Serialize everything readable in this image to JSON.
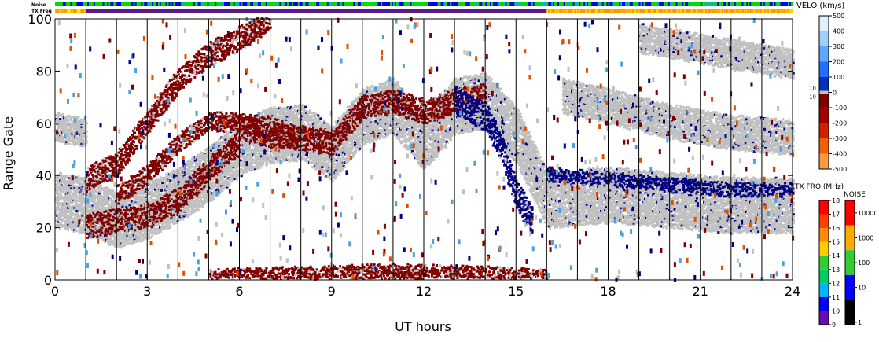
{
  "chart_data": {
    "type": "heatmap",
    "xlabel": "UT hours",
    "ylabel": "Range Gate",
    "x_ticks": [
      "0",
      "3",
      "6",
      "9",
      "12",
      "15",
      "18",
      "21",
      "24"
    ],
    "xlim": [
      0,
      24
    ],
    "y_ticks": [
      "0",
      "20",
      "40",
      "60",
      "80",
      "100"
    ],
    "ylim": [
      0,
      100
    ],
    "vertical_gridlines_hours": [
      1,
      2,
      3,
      4,
      5,
      6,
      7,
      8,
      9,
      10,
      11,
      12,
      13,
      14,
      15,
      16,
      17,
      18,
      19,
      20,
      21,
      22,
      23
    ],
    "top_strips": {
      "noise_label": "Noise",
      "txfreq_label": "TX Freq",
      "noise_pattern": "blue/green mix over full day",
      "txfreq_segments": [
        {
          "start": 0.0,
          "end": 1.0,
          "color": "#ffee00"
        },
        {
          "start": 1.0,
          "end": 16.0,
          "color": "#5a1a8c"
        },
        {
          "start": 16.0,
          "end": 24.0,
          "color": "#ffd000"
        }
      ]
    },
    "velocity_scale": {
      "title": "VELO (km/s)",
      "ticks": [
        "500",
        "400",
        "300",
        "200",
        "100",
        "0",
        "-100",
        "-200",
        "-300",
        "-400",
        "-500"
      ],
      "small_ticks": [
        "10",
        "-10"
      ],
      "range": [
        -500,
        500
      ]
    },
    "txfreq_scale": {
      "title": "TX FRQ (MHz)",
      "ticks": [
        "18",
        "17",
        "16",
        "15",
        "14",
        "13",
        "12",
        "11",
        "10",
        "9"
      ],
      "colors": [
        "#ff0000",
        "#ff4000",
        "#ff8c00",
        "#ffcc00",
        "#33cc33",
        "#00cc66",
        "#00b4ff",
        "#0000ff",
        "#6a0dad",
        "#000000"
      ]
    },
    "noise_scale": {
      "title": "NOISE",
      "ticks": [
        "10000",
        "1000",
        "100",
        "10",
        "1"
      ],
      "colors": [
        "#ff0000",
        "#ffaa00",
        "#33cc33",
        "#0000ff",
        "#000000"
      ]
    },
    "colors": {
      "ground_scatter": "#c0c0c0",
      "toward": "#000080",
      "away": "#800000",
      "away_light": "#e05000",
      "toward_light": "#4aa0e0"
    },
    "features": [
      {
        "name": "ground-scatter",
        "color": "#c0c0c0",
        "path": [
          [
            0,
            30
          ],
          [
            1,
            28
          ],
          [
            2,
            22
          ],
          [
            3,
            26
          ],
          [
            4,
            32
          ],
          [
            5,
            40
          ],
          [
            6,
            50
          ],
          [
            7,
            55
          ],
          [
            8,
            56
          ],
          [
            9,
            48
          ],
          [
            10,
            62
          ],
          [
            11,
            66
          ],
          [
            12,
            52
          ],
          [
            13,
            66
          ],
          [
            14,
            68
          ],
          [
            15,
            55
          ],
          [
            16,
            30
          ],
          [
            18,
            32
          ],
          [
            20,
            30
          ],
          [
            22,
            28
          ],
          [
            24,
            28
          ]
        ],
        "width": 10
      },
      {
        "name": "ground-scatter-upper",
        "color": "#c0c0c0",
        "path": [
          [
            0,
            58
          ],
          [
            1,
            56
          ]
        ],
        "width": 5
      },
      {
        "name": "ground-scatter-late",
        "color": "#c0c0c0",
        "path": [
          [
            16.5,
            70
          ],
          [
            18,
            66
          ],
          [
            20,
            60
          ],
          [
            22,
            56
          ],
          [
            24,
            54
          ]
        ],
        "width": 6
      },
      {
        "name": "ground-scatter-late-top",
        "color": "#c0c0c0",
        "path": [
          [
            19,
            92
          ],
          [
            21,
            88
          ],
          [
            23,
            84
          ],
          [
            24,
            82
          ]
        ],
        "width": 5
      },
      {
        "name": "west-arc-1",
        "color": "#800000",
        "path": [
          [
            1,
            20
          ],
          [
            2,
            22
          ],
          [
            3,
            24
          ],
          [
            4,
            30
          ],
          [
            5,
            42
          ],
          [
            6,
            52
          ]
        ],
        "width": 4
      },
      {
        "name": "west-arc-2",
        "color": "#800000",
        "path": [
          [
            1,
            38
          ],
          [
            2,
            44
          ],
          [
            3,
            60
          ],
          [
            4,
            76
          ],
          [
            5,
            86
          ],
          [
            6,
            92
          ],
          [
            7,
            100
          ]
        ],
        "width": 4
      },
      {
        "name": "west-arc-3",
        "color": "#800000",
        "path": [
          [
            2,
            32
          ],
          [
            3,
            40
          ],
          [
            4,
            52
          ],
          [
            5,
            60
          ],
          [
            6,
            60
          ],
          [
            7,
            58
          ],
          [
            8,
            54
          ]
        ],
        "width": 3
      },
      {
        "name": "east-band",
        "color": "#800000",
        "path": [
          [
            6,
            58
          ],
          [
            7,
            55
          ],
          [
            8,
            54
          ],
          [
            9,
            52
          ],
          [
            10,
            66
          ],
          [
            11,
            68
          ],
          [
            12,
            64
          ],
          [
            13,
            68
          ],
          [
            14,
            70
          ]
        ],
        "width": 4
      },
      {
        "name": "sweep-toward",
        "color": "#000080",
        "path": [
          [
            13,
            68
          ],
          [
            14,
            62
          ],
          [
            14.5,
            50
          ],
          [
            15,
            32
          ],
          [
            15.5,
            22
          ]
        ],
        "width": 5
      },
      {
        "name": "late-toward",
        "color": "#000080",
        "path": [
          [
            16,
            40
          ],
          [
            18,
            38
          ],
          [
            20,
            36
          ],
          [
            22,
            34
          ],
          [
            24,
            34
          ]
        ],
        "width": 2
      },
      {
        "name": "near-range",
        "color": "#800000",
        "path": [
          [
            5,
            0
          ],
          [
            8,
            1
          ],
          [
            11,
            2
          ],
          [
            14,
            1
          ],
          [
            16,
            0
          ]
        ],
        "width": 3
      }
    ]
  }
}
